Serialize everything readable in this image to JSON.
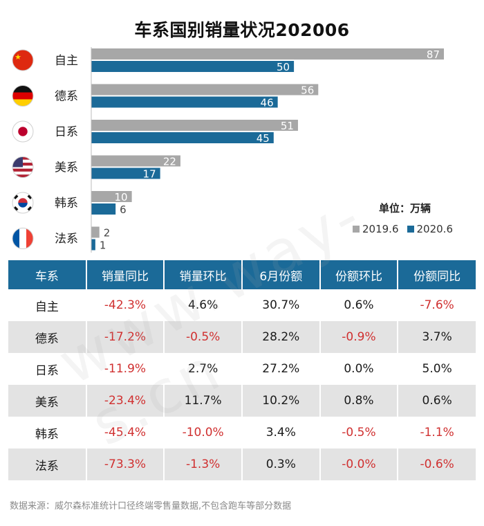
{
  "title": "车系国别销量状况202006",
  "unit_label": "单位：万辆",
  "watermark": "www.way-s.cn",
  "footer": "数据来源：威尔森标准统计口径终端零售量数据,不包含跑车等部分数据",
  "colors": {
    "series_2019": "#a7a7a7",
    "series_2020": "#1b6a98",
    "header_bg": "#1b6a98",
    "negative": "#d03030",
    "alt_row": "#e3e3e3"
  },
  "chart_data": {
    "type": "bar",
    "orientation": "horizontal",
    "title": "车系国别销量状况202006",
    "categories": [
      "自主",
      "德系",
      "日系",
      "美系",
      "韩系",
      "法系"
    ],
    "flag_icons": [
      "china-flag-icon",
      "germany-flag-icon",
      "japan-flag-icon",
      "usa-flag-icon",
      "korea-flag-icon",
      "france-flag-icon"
    ],
    "series": [
      {
        "name": "2019.6",
        "values": [
          87,
          56,
          51,
          22,
          10,
          2
        ],
        "color": "#a7a7a7"
      },
      {
        "name": "2020.6",
        "values": [
          50,
          46,
          45,
          17,
          6,
          1
        ],
        "color": "#1b6a98"
      }
    ],
    "xlim": [
      0,
      87
    ],
    "grid": false,
    "legend_position": "bottom-right"
  },
  "table": {
    "headers": [
      "车系",
      "销量同比",
      "销量环比",
      "6月份额",
      "份额环比",
      "份额同比"
    ],
    "rows": [
      [
        "自主",
        "-42.3%",
        "4.6%",
        "30.7%",
        "0.6%",
        "-7.6%"
      ],
      [
        "德系",
        "-17.2%",
        "-0.5%",
        "28.2%",
        "-0.9%",
        "3.7%"
      ],
      [
        "日系",
        "-11.9%",
        "2.7%",
        "27.2%",
        "0.0%",
        "5.0%"
      ],
      [
        "美系",
        "-23.4%",
        "11.7%",
        "10.2%",
        "0.8%",
        "0.6%"
      ],
      [
        "韩系",
        "-45.4%",
        "-10.0%",
        "3.4%",
        "-0.5%",
        "-1.1%"
      ],
      [
        "法系",
        "-73.3%",
        "-1.3%",
        "0.3%",
        "-0.0%",
        "-0.6%"
      ]
    ]
  }
}
